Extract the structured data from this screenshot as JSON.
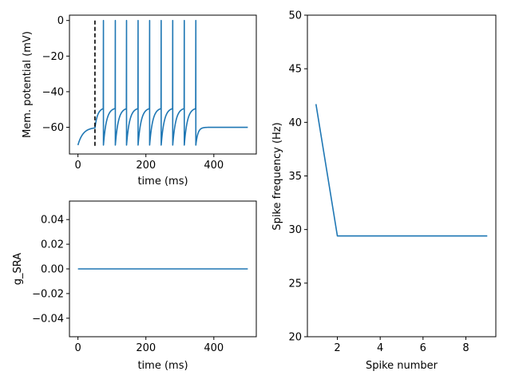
{
  "chart_data": [
    {
      "id": "membrane",
      "type": "line",
      "xlabel": "time (ms)",
      "ylabel": "Mem. potential (mV)",
      "xlim": [
        -25,
        525
      ],
      "ylim": [
        -75,
        3
      ],
      "xticks": [
        0,
        200,
        400
      ],
      "yticks": [
        0,
        -20,
        -40,
        -60
      ],
      "color": "#1f77b4",
      "spike_times_ms": [
        75,
        110,
        143,
        177,
        211,
        245,
        279,
        313,
        347
      ],
      "rest_mV": -70,
      "steady_mV": -60,
      "reset_mV": -70,
      "peak_mV": 0,
      "stim_on_ms": 50,
      "stim_off_ms": 350,
      "stim_marker": {
        "x": 50,
        "style": "dashed",
        "color": "#000000"
      }
    },
    {
      "id": "gsra",
      "type": "line",
      "xlabel": "time (ms)",
      "ylabel": "g_SRA",
      "xlim": [
        -25,
        525
      ],
      "ylim": [
        -0.055,
        0.055
      ],
      "xticks": [
        0,
        200,
        400
      ],
      "yticks": [
        -0.04,
        -0.02,
        0.0,
        0.02,
        0.04
      ],
      "ytick_labels": [
        "−0.04",
        "−0.02",
        "0.00",
        "0.02",
        "0.04"
      ],
      "color": "#1f77b4",
      "x": [
        0,
        500
      ],
      "y": [
        0,
        0
      ]
    },
    {
      "id": "frequency",
      "type": "line",
      "xlabel": "Spike number",
      "ylabel": "Spike frequency (Hz)",
      "xlim": [
        0.6,
        9.4
      ],
      "ylim": [
        20,
        50
      ],
      "xticks": [
        2,
        4,
        6,
        8
      ],
      "yticks": [
        20,
        25,
        30,
        35,
        40,
        45,
        50
      ],
      "color": "#1f77b4",
      "x": [
        1,
        2,
        3,
        4,
        5,
        6,
        7,
        8,
        9
      ],
      "y": [
        41.7,
        29.4,
        29.4,
        29.4,
        29.4,
        29.4,
        29.4,
        29.4,
        29.4
      ]
    }
  ]
}
